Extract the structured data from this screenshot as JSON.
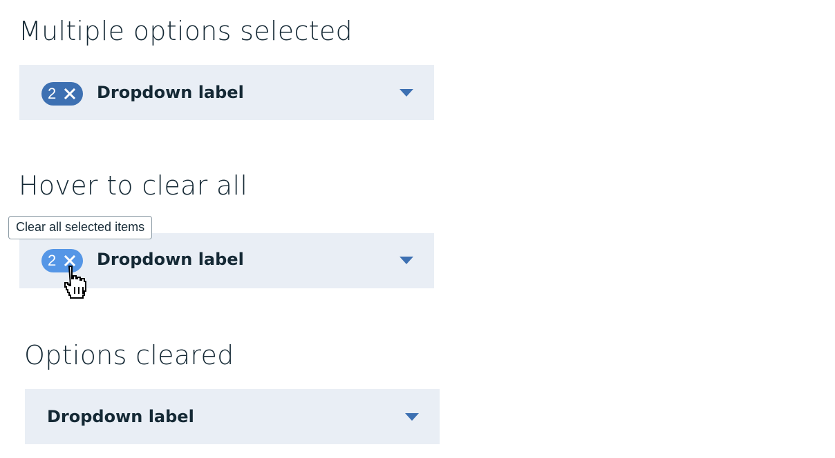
{
  "sections": [
    {
      "title": "Multiple options selected",
      "dropdown": {
        "label": "Dropdown label",
        "selected_count": "2",
        "has_tag": true
      }
    },
    {
      "title": "Hover to clear all",
      "dropdown": {
        "label": "Dropdown label",
        "selected_count": "2",
        "has_tag": true
      },
      "tooltip": "Clear all selected items"
    },
    {
      "title": "Options cleared",
      "dropdown": {
        "label": "Dropdown label",
        "has_tag": false
      }
    }
  ],
  "colors": {
    "dropdown_background": "#e9eef5",
    "tag_default": "#3d70b2",
    "tag_hover": "#5596e6",
    "caret": "#3d70b2",
    "text": "#152935"
  },
  "icons": {
    "tag_clear": "close-icon",
    "dropdown_caret": "caret-down-icon",
    "pointer": "hand-pointer-cursor-icon"
  }
}
